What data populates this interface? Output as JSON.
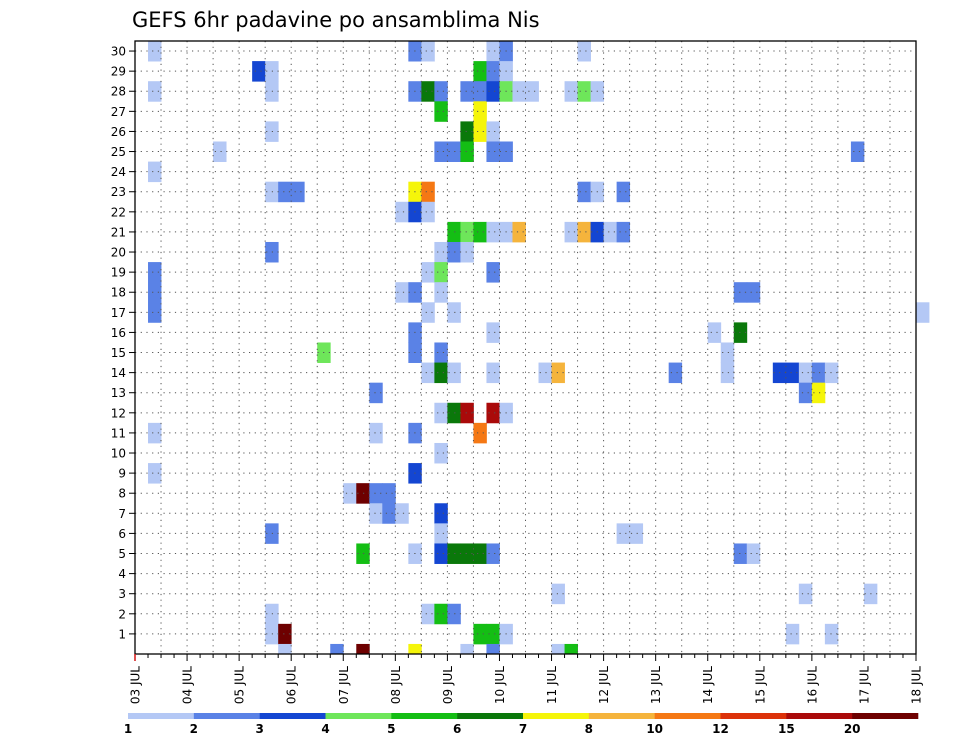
{
  "chart_data": {
    "type": "heatmap",
    "title": "GEFS 6hr padavine po ansamblima Nis",
    "xlabel": "",
    "ylabel": "",
    "x_tick_labels": [
      "03 JUL",
      "04 JUL",
      "05 JUL",
      "06 JUL",
      "07 JUL",
      "08 JUL",
      "09 JUL",
      "10 JUL",
      "11 JUL",
      "12 JUL",
      "13 JUL",
      "14 JUL",
      "15 JUL",
      "16 JUL",
      "17 JUL",
      "18 JUL"
    ],
    "y_tick_labels": [
      "1",
      "2",
      "3",
      "4",
      "5",
      "6",
      "7",
      "8",
      "9",
      "10",
      "11",
      "12",
      "13",
      "14",
      "15",
      "16",
      "17",
      "18",
      "19",
      "20",
      "21",
      "22",
      "23",
      "24",
      "25",
      "26",
      "27",
      "28",
      "29",
      "30"
    ],
    "x_step": "6hr",
    "member_range": [
      1,
      30
    ],
    "grid": true,
    "colorbar": {
      "placement": "bottom",
      "labels": [
        "1",
        "2",
        "3",
        "4",
        "5",
        "6",
        "7",
        "8",
        "10",
        "12",
        "15",
        "20"
      ],
      "colors": [
        "#b4c8f5",
        "#5a82e6",
        "#1446d2",
        "#6ee65a",
        "#14be14",
        "#0a780a",
        "#f5f50a",
        "#f5b43c",
        "#f57814",
        "#dc320a",
        "#aa0a0a",
        "#6e0000"
      ]
    },
    "cells": [
      [
        1,
        30,
        1
      ],
      [
        1,
        28,
        1
      ],
      [
        1,
        24,
        1
      ],
      [
        1,
        19,
        2
      ],
      [
        1,
        18,
        2
      ],
      [
        1,
        17,
        2
      ],
      [
        1,
        11,
        1
      ],
      [
        1,
        9,
        1
      ],
      [
        6,
        25,
        1
      ],
      [
        9,
        29,
        3
      ],
      [
        10,
        29,
        1
      ],
      [
        10,
        28,
        1
      ],
      [
        10,
        26,
        1
      ],
      [
        10,
        23,
        1
      ],
      [
        10,
        20,
        2
      ],
      [
        10,
        6,
        2
      ],
      [
        10,
        2,
        1
      ],
      [
        10,
        1,
        1
      ],
      [
        11,
        23,
        2
      ],
      [
        11,
        1,
        12
      ],
      [
        11,
        0,
        1
      ],
      [
        12,
        23,
        2
      ],
      [
        14,
        15,
        4
      ],
      [
        15,
        0,
        2
      ],
      [
        16,
        8,
        1
      ],
      [
        17,
        8,
        12
      ],
      [
        17,
        5,
        5
      ],
      [
        17,
        0,
        12
      ],
      [
        18,
        13,
        2
      ],
      [
        18,
        11,
        1
      ],
      [
        18,
        8,
        2
      ],
      [
        18,
        7,
        1
      ],
      [
        19,
        8,
        2
      ],
      [
        19,
        7,
        2
      ],
      [
        20,
        22,
        1
      ],
      [
        20,
        18,
        1
      ],
      [
        20,
        7,
        1
      ],
      [
        21,
        30,
        2
      ],
      [
        21,
        28,
        2
      ],
      [
        21,
        23,
        7
      ],
      [
        21,
        22,
        3
      ],
      [
        21,
        18,
        2
      ],
      [
        21,
        16,
        2
      ],
      [
        21,
        15,
        2
      ],
      [
        21,
        11,
        2
      ],
      [
        21,
        9,
        3
      ],
      [
        21,
        5,
        1
      ],
      [
        21,
        0,
        7
      ],
      [
        22,
        30,
        1
      ],
      [
        22,
        28,
        6
      ],
      [
        22,
        23,
        9
      ],
      [
        22,
        22,
        1
      ],
      [
        22,
        19,
        1
      ],
      [
        22,
        17,
        1
      ],
      [
        22,
        14,
        1
      ],
      [
        22,
        2,
        1
      ],
      [
        23,
        28,
        2
      ],
      [
        23,
        27,
        5
      ],
      [
        23,
        25,
        2
      ],
      [
        23,
        20,
        1
      ],
      [
        23,
        19,
        4
      ],
      [
        23,
        18,
        1
      ],
      [
        23,
        15,
        2
      ],
      [
        23,
        14,
        6
      ],
      [
        23,
        12,
        1
      ],
      [
        23,
        10,
        1
      ],
      [
        23,
        7,
        3
      ],
      [
        23,
        6,
        1
      ],
      [
        23,
        5,
        3
      ],
      [
        23,
        2,
        5
      ],
      [
        24,
        25,
        2
      ],
      [
        24,
        21,
        5
      ],
      [
        24,
        20,
        2
      ],
      [
        24,
        17,
        1
      ],
      [
        24,
        14,
        1
      ],
      [
        24,
        12,
        6
      ],
      [
        24,
        5,
        6
      ],
      [
        24,
        2,
        2
      ],
      [
        25,
        28,
        2
      ],
      [
        25,
        26,
        6
      ],
      [
        25,
        25,
        5
      ],
      [
        25,
        21,
        4
      ],
      [
        25,
        20,
        1
      ],
      [
        25,
        12,
        11
      ],
      [
        25,
        5,
        6
      ],
      [
        25,
        0,
        1
      ],
      [
        26,
        29,
        5
      ],
      [
        26,
        28,
        2
      ],
      [
        26,
        27,
        7
      ],
      [
        26,
        26,
        7
      ],
      [
        26,
        21,
        5
      ],
      [
        26,
        11,
        9
      ],
      [
        26,
        5,
        6
      ],
      [
        26,
        1,
        5
      ],
      [
        27,
        30,
        1
      ],
      [
        27,
        29,
        2
      ],
      [
        27,
        28,
        3
      ],
      [
        27,
        26,
        1
      ],
      [
        27,
        25,
        2
      ],
      [
        27,
        21,
        1
      ],
      [
        27,
        19,
        2
      ],
      [
        27,
        16,
        1
      ],
      [
        27,
        14,
        1
      ],
      [
        27,
        12,
        11
      ],
      [
        27,
        5,
        2
      ],
      [
        27,
        1,
        5
      ],
      [
        27,
        0,
        2
      ],
      [
        28,
        30,
        2
      ],
      [
        28,
        29,
        1
      ],
      [
        28,
        28,
        4
      ],
      [
        28,
        25,
        2
      ],
      [
        28,
        21,
        1
      ],
      [
        28,
        12,
        1
      ],
      [
        28,
        1,
        1
      ],
      [
        29,
        28,
        1
      ],
      [
        29,
        21,
        8
      ],
      [
        30,
        28,
        1
      ],
      [
        31,
        14,
        1
      ],
      [
        32,
        14,
        8
      ],
      [
        32,
        3,
        1
      ],
      [
        32,
        0,
        1
      ],
      [
        33,
        28,
        1
      ],
      [
        33,
        21,
        1
      ],
      [
        33,
        0,
        5
      ],
      [
        34,
        30,
        1
      ],
      [
        34,
        28,
        4
      ],
      [
        34,
        23,
        2
      ],
      [
        34,
        21,
        8
      ],
      [
        35,
        28,
        1
      ],
      [
        35,
        23,
        1
      ],
      [
        35,
        21,
        3
      ],
      [
        36,
        21,
        1
      ],
      [
        37,
        23,
        2
      ],
      [
        37,
        21,
        2
      ],
      [
        37,
        6,
        1
      ],
      [
        38,
        6,
        1
      ],
      [
        41,
        14,
        2
      ],
      [
        44,
        16,
        1
      ],
      [
        45,
        15,
        1
      ],
      [
        45,
        14,
        1
      ],
      [
        46,
        18,
        2
      ],
      [
        46,
        16,
        6
      ],
      [
        46,
        5,
        2
      ],
      [
        47,
        18,
        2
      ],
      [
        47,
        5,
        1
      ],
      [
        49,
        14,
        3
      ],
      [
        50,
        14,
        3
      ],
      [
        50,
        1,
        1
      ],
      [
        51,
        14,
        1
      ],
      [
        51,
        13,
        2
      ],
      [
        51,
        3,
        1
      ],
      [
        52,
        14,
        2
      ],
      [
        52,
        13,
        7
      ],
      [
        53,
        14,
        1
      ],
      [
        53,
        1,
        1
      ],
      [
        55,
        25,
        2
      ],
      [
        56,
        3,
        1
      ],
      [
        60,
        17,
        1
      ],
      [
        64,
        2,
        1
      ],
      [
        65,
        23,
        11
      ],
      [
        65,
        22,
        2
      ],
      [
        66,
        23,
        4
      ],
      [
        66,
        22,
        1
      ],
      [
        66,
        7,
        1
      ],
      [
        67,
        23,
        4
      ],
      [
        68,
        23,
        2
      ],
      [
        70,
        28,
        5
      ]
    ]
  }
}
